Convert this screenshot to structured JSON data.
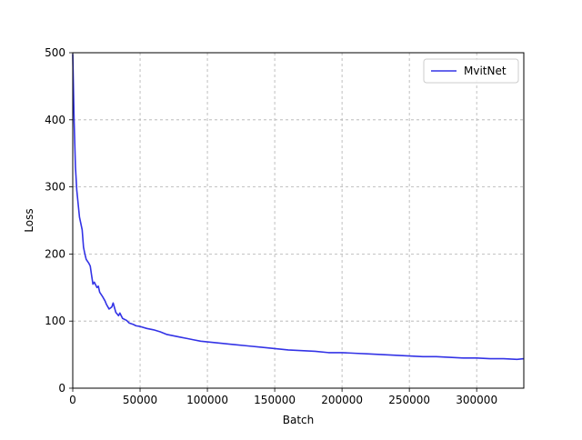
{
  "chart_data": {
    "type": "line",
    "title": "",
    "xlabel": "Batch",
    "ylabel": "Loss",
    "xlim": [
      0,
      335000
    ],
    "ylim": [
      0,
      500
    ],
    "x_ticks": [
      0,
      50000,
      100000,
      150000,
      200000,
      250000,
      300000
    ],
    "x_tick_labels": [
      "0",
      "50000",
      "100000",
      "150000",
      "200000",
      "250000",
      "300000"
    ],
    "y_ticks": [
      0,
      100,
      200,
      300,
      400,
      500
    ],
    "y_tick_labels": [
      "0",
      "100",
      "200",
      "300",
      "400",
      "500"
    ],
    "grid": true,
    "grid_style": "dashed",
    "legend_position": "top-right",
    "series": [
      {
        "name": "MvitNet",
        "color": "#3333e6",
        "x": [
          0,
          1000,
          2000,
          3000,
          5000,
          7000,
          8000,
          9000,
          10000,
          12000,
          13000,
          14000,
          15000,
          16000,
          18000,
          19000,
          20000,
          22000,
          24000,
          25000,
          27000,
          29000,
          30000,
          32000,
          34000,
          35000,
          37000,
          40000,
          42000,
          45000,
          47000,
          50000,
          55000,
          60000,
          65000,
          70000,
          75000,
          80000,
          85000,
          90000,
          95000,
          100000,
          110000,
          120000,
          130000,
          140000,
          150000,
          160000,
          170000,
          180000,
          190000,
          200000,
          210000,
          220000,
          230000,
          240000,
          250000,
          260000,
          270000,
          280000,
          290000,
          300000,
          310000,
          320000,
          330000,
          335000
        ],
        "y": [
          498,
          400,
          330,
          295,
          255,
          236,
          210,
          200,
          192,
          186,
          182,
          168,
          155,
          158,
          150,
          152,
          143,
          137,
          130,
          125,
          118,
          121,
          127,
          113,
          108,
          112,
          104,
          101,
          97,
          95,
          93,
          92,
          89,
          87,
          84,
          80,
          78,
          76,
          74,
          72,
          70,
          69,
          67,
          65,
          63,
          61,
          59,
          57,
          56,
          55,
          53,
          53,
          52,
          51,
          50,
          49,
          48,
          47,
          47,
          46,
          45,
          45,
          44,
          44,
          43,
          44
        ]
      }
    ]
  }
}
